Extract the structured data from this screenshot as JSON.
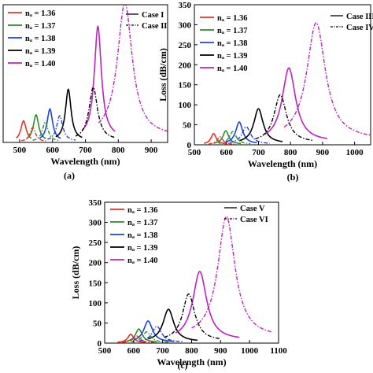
{
  "chart_data": [
    {
      "type": "line",
      "caption": "(a)",
      "xlabel": "Wavelength (nm)",
      "ylabel": "",
      "xlim": [
        450,
        950
      ],
      "ylim": [
        0,
        350
      ],
      "xticks": [
        500,
        600,
        700,
        800,
        900
      ],
      "yticks": [],
      "legend_na": [
        {
          "label": "nₐ = 1.36",
          "color": "#e6332a"
        },
        {
          "label": "nₐ = 1.37",
          "color": "#2e8b2e"
        },
        {
          "label": "nₐ = 1.38",
          "color": "#2040e0"
        },
        {
          "label": "nₐ = 1.39",
          "color": "#000000"
        },
        {
          "label": "nₐ = 1.40",
          "color": "#c020c0"
        }
      ],
      "legend_case": [
        {
          "label": "Case I",
          "style": "solid"
        },
        {
          "label": "Case II",
          "style": "dashdot"
        }
      ],
      "series": [
        {
          "case": "Case I",
          "color": "#e6332a",
          "peak_x": 512,
          "peak_y": 55,
          "x_range": [
            490,
            535
          ]
        },
        {
          "case": "Case I",
          "color": "#2e8b2e",
          "peak_x": 550,
          "peak_y": 70,
          "x_range": [
            520,
            580
          ]
        },
        {
          "case": "Case I",
          "color": "#2040e0",
          "peak_x": 592,
          "peak_y": 85,
          "x_range": [
            560,
            625
          ]
        },
        {
          "case": "Case I",
          "color": "#000000",
          "peak_x": 648,
          "peak_y": 135,
          "x_range": [
            610,
            690
          ]
        },
        {
          "case": "Case I",
          "color": "#c020c0",
          "peak_x": 738,
          "peak_y": 295,
          "x_range": [
            690,
            790
          ]
        },
        {
          "case": "Case II",
          "color": "#e6332a",
          "peak_x": 540,
          "peak_y": 38,
          "x_range": [
            505,
            580
          ]
        },
        {
          "case": "Case II",
          "color": "#2e8b2e",
          "peak_x": 578,
          "peak_y": 52,
          "x_range": [
            540,
            620
          ]
        },
        {
          "case": "Case II",
          "color": "#2040e0",
          "peak_x": 622,
          "peak_y": 68,
          "x_range": [
            585,
            670
          ]
        },
        {
          "case": "Case II",
          "color": "#000000",
          "peak_x": 724,
          "peak_y": 140,
          "x_range": [
            670,
            790
          ]
        },
        {
          "case": "Case II",
          "color": "#c020c0",
          "peak_x": 820,
          "peak_y": 355,
          "x_range": [
            740,
            950
          ]
        }
      ]
    },
    {
      "type": "line",
      "caption": "(b)",
      "xlabel": "Wavelength (nm)",
      "ylabel": "Loss (dB/cm)",
      "xlim": [
        500,
        1050
      ],
      "ylim": [
        0,
        350
      ],
      "xticks": [
        500,
        600,
        700,
        800,
        900,
        1000
      ],
      "yticks": [
        0,
        50,
        100,
        150,
        200,
        250,
        300,
        350
      ],
      "legend_na": [
        {
          "label": "nₐ = 1.36",
          "color": "#e6332a"
        },
        {
          "label": "nₐ = 1.37",
          "color": "#2e8b2e"
        },
        {
          "label": "nₐ = 1.38",
          "color": "#2040e0"
        },
        {
          "label": "nₐ = 1.39",
          "color": "#000000"
        },
        {
          "label": "nₐ = 1.40",
          "color": "#c020c0"
        }
      ],
      "legend_case": [
        {
          "label": "Case III",
          "style": "solid"
        },
        {
          "label": "Case IV",
          "style": "dashdot"
        }
      ],
      "series": [
        {
          "case": "Case III",
          "color": "#e6332a",
          "peak_x": 560,
          "peak_y": 28,
          "x_range": [
            530,
            600
          ]
        },
        {
          "case": "Case III",
          "color": "#2e8b2e",
          "peak_x": 598,
          "peak_y": 35,
          "x_range": [
            560,
            645
          ]
        },
        {
          "case": "Case III",
          "color": "#2040e0",
          "peak_x": 640,
          "peak_y": 57,
          "x_range": [
            595,
            695
          ]
        },
        {
          "case": "Case III",
          "color": "#000000",
          "peak_x": 700,
          "peak_y": 90,
          "x_range": [
            640,
            775
          ]
        },
        {
          "case": "Case III",
          "color": "#c020c0",
          "peak_x": 795,
          "peak_y": 192,
          "x_range": [
            720,
            915
          ]
        },
        {
          "case": "Case IV",
          "color": "#e6332a",
          "peak_x": 580,
          "peak_y": 20,
          "x_range": [
            545,
            625
          ]
        },
        {
          "case": "Case IV",
          "color": "#2e8b2e",
          "peak_x": 620,
          "peak_y": 33,
          "x_range": [
            575,
            675
          ]
        },
        {
          "case": "Case IV",
          "color": "#2040e0",
          "peak_x": 662,
          "peak_y": 45,
          "x_range": [
            610,
            735
          ]
        },
        {
          "case": "Case IV",
          "color": "#000000",
          "peak_x": 768,
          "peak_y": 125,
          "x_range": [
            690,
            870
          ]
        },
        {
          "case": "Case IV",
          "color": "#c020c0",
          "peak_x": 880,
          "peak_y": 305,
          "x_range": [
            780,
            1050
          ]
        }
      ]
    },
    {
      "type": "line",
      "caption": "(c)",
      "xlabel": "Wavelength (nm)",
      "ylabel": "Loss (dB/cm)",
      "xlim": [
        500,
        1100
      ],
      "ylim": [
        0,
        350
      ],
      "xticks": [
        500,
        600,
        700,
        800,
        900,
        1000,
        1100
      ],
      "yticks": [
        0,
        50,
        100,
        150,
        200,
        250,
        300,
        350
      ],
      "legend_na": [
        {
          "label": "nₐ = 1.36",
          "color": "#e6332a"
        },
        {
          "label": "nₐ = 1.37",
          "color": "#2e8b2e"
        },
        {
          "label": "nₐ = 1.38",
          "color": "#2040e0"
        },
        {
          "label": "nₐ = 1.39",
          "color": "#000000"
        },
        {
          "label": "nₐ = 1.40",
          "color": "#c020c0"
        }
      ],
      "legend_case": [
        {
          "label": "Case V",
          "style": "solid"
        },
        {
          "label": "Case VI",
          "style": "dashdot"
        }
      ],
      "series": [
        {
          "case": "Case V",
          "color": "#e6332a",
          "peak_x": 590,
          "peak_y": 22,
          "x_range": [
            545,
            640
          ]
        },
        {
          "case": "Case V",
          "color": "#2e8b2e",
          "peak_x": 618,
          "peak_y": 35,
          "x_range": [
            570,
            680
          ]
        },
        {
          "case": "Case V",
          "color": "#2040e0",
          "peak_x": 650,
          "peak_y": 55,
          "x_range": [
            600,
            740
          ]
        },
        {
          "case": "Case V",
          "color": "#000000",
          "peak_x": 720,
          "peak_y": 84,
          "x_range": [
            650,
            820
          ]
        },
        {
          "case": "Case V",
          "color": "#c020c0",
          "peak_x": 828,
          "peak_y": 178,
          "x_range": [
            745,
            965
          ]
        },
        {
          "case": "Case VI",
          "color": "#e6332a",
          "peak_x": 610,
          "peak_y": 18,
          "x_range": [
            560,
            670
          ]
        },
        {
          "case": "Case VI",
          "color": "#2e8b2e",
          "peak_x": 645,
          "peak_y": 28,
          "x_range": [
            590,
            720
          ]
        },
        {
          "case": "Case VI",
          "color": "#2040e0",
          "peak_x": 680,
          "peak_y": 42,
          "x_range": [
            620,
            770
          ]
        },
        {
          "case": "Case VI",
          "color": "#000000",
          "peak_x": 790,
          "peak_y": 122,
          "x_range": [
            705,
            900
          ]
        },
        {
          "case": "Case VI",
          "color": "#c020c0",
          "peak_x": 920,
          "peak_y": 315,
          "x_range": [
            800,
            1075
          ]
        }
      ]
    }
  ]
}
